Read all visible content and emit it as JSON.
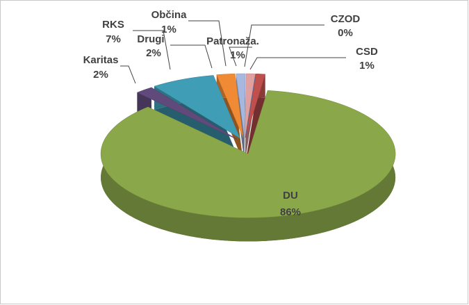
{
  "chart_data": {
    "type": "pie",
    "categories": [
      "CSD",
      "DU",
      "Karitas",
      "RKS",
      "Drugi",
      "Občina",
      "Patronaža.",
      "CZOD"
    ],
    "values": [
      1,
      86,
      2,
      7,
      2,
      1,
      1,
      0
    ],
    "value_labels": [
      "1%",
      "86%",
      "2%",
      "7%",
      "2%",
      "1%",
      "1%",
      "0%"
    ],
    "colors": [
      "#c0504d",
      "#8aa84a",
      "#604a7b",
      "#3f9db5",
      "#f08a35",
      "#a6b8e0",
      "#e0a0a0",
      "#4f81bd"
    ]
  }
}
